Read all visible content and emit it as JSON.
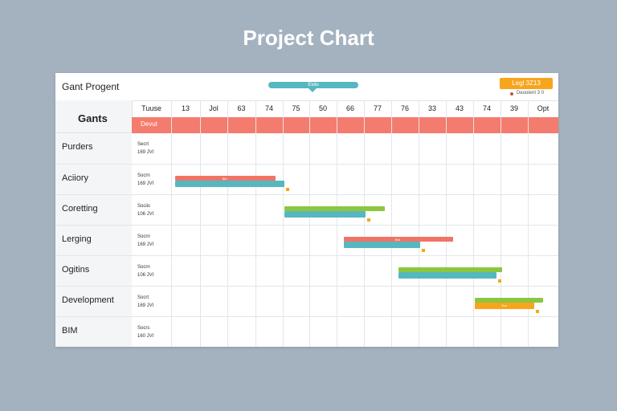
{
  "page": {
    "title": "Project Chart"
  },
  "toolbar": {
    "app_title": "Gant Progent",
    "range_label": "Ewtu",
    "legend_button": "Legl 3Z13",
    "legend_text": "Deuolent 3 0"
  },
  "grid": {
    "corner_label": "Gants",
    "header": [
      "Tuuse",
      "13",
      "Jol",
      "63",
      "74",
      "75",
      "50",
      "66",
      "77",
      "76",
      "33",
      "43",
      "74",
      "39",
      "Opt"
    ],
    "band_label": "Devut"
  },
  "rows": [
    {
      "label": "Purders",
      "sub1": "Secrt",
      "sub2": "169 JVI"
    },
    {
      "label": "Aciiory",
      "sub1": "Socrn",
      "sub2": "169 JVI"
    },
    {
      "label": "Coretting",
      "sub1": "Sociis",
      "sub2": "106 JVI"
    },
    {
      "label": "Lerging",
      "sub1": "Socrn",
      "sub2": "169 JVI"
    },
    {
      "label": "Ogitins",
      "sub1": "Socrn",
      "sub2": "106 JVI"
    },
    {
      "label": "Development",
      "sub1": "Socrt",
      "sub2": "169 JVI"
    },
    {
      "label": "BIM",
      "sub1": "Socrs",
      "sub2": "160 JVI"
    }
  ],
  "bars": [
    {
      "row": 1,
      "start": 0.0,
      "end": 3.7,
      "color": "#f07466",
      "text": "Bts"
    },
    {
      "row": 1,
      "start": 0.0,
      "end": 4.0,
      "color": "#56b7c0",
      "accent_end": 4.0,
      "accent_color": "#8cc63f"
    },
    {
      "row": 2,
      "start": 4.0,
      "end": 7.7,
      "color": "#8cc63f",
      "text": ""
    },
    {
      "row": 2,
      "start": 4.0,
      "end": 7.0,
      "color": "#56b7c0",
      "accent_color": "#f6c84a"
    },
    {
      "row": 3,
      "start": 6.2,
      "end": 10.2,
      "color": "#f07466",
      "text": "Bnt"
    },
    {
      "row": 3,
      "start": 6.2,
      "end": 9.0,
      "color": "#56b7c0"
    },
    {
      "row": 4,
      "start": 8.2,
      "end": 12.0,
      "color": "#8cc63f"
    },
    {
      "row": 4,
      "start": 8.2,
      "end": 11.8,
      "color": "#56b7c0",
      "accent_color": "#f6c84a"
    },
    {
      "row": 5,
      "start": 11.0,
      "end": 13.5,
      "color": "#8cc63f"
    },
    {
      "row": 5,
      "start": 11.0,
      "end": 13.2,
      "color": "#f6a51d",
      "text": "Sco"
    }
  ],
  "colors": {
    "background": "#a4b2bf",
    "band": "#f47c6e",
    "teal": "#56b7c0",
    "green": "#8cc63f",
    "orange": "#f6a51d",
    "red": "#f07466"
  }
}
